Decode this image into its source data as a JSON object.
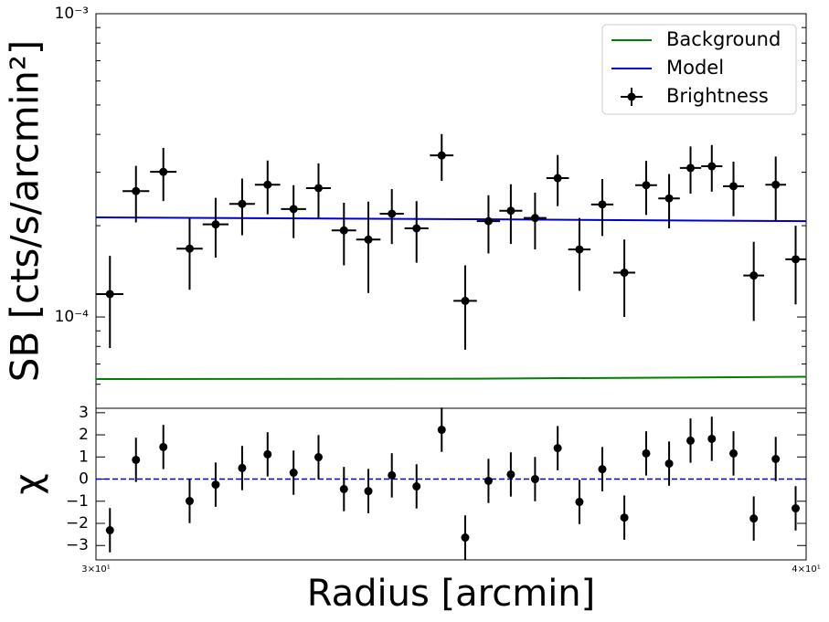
{
  "chart_data": [
    {
      "type": "scatter",
      "ylabel": "SB [cts/s/arcmin²]",
      "xscale": "log",
      "yscale": "log",
      "xlim": [
        30,
        40
      ],
      "ylim": [
        5e-05,
        0.001
      ],
      "yticks": [
        {
          "value": 0.001,
          "label": "10⁻³"
        },
        {
          "value": 0.0001,
          "label": "10⁻⁴"
        }
      ],
      "yminorticks": [
        6e-05,
        7e-05,
        8e-05,
        9e-05,
        0.0002,
        0.0003,
        0.0004,
        0.0005,
        0.0006,
        0.0007,
        0.0008,
        0.0009
      ],
      "legend": "upper right",
      "series": [
        {
          "name": "Background",
          "type": "line",
          "color": "#008000",
          "x": [
            30,
            35,
            40
          ],
          "values": [
            6.24e-05,
            6.26e-05,
            6.35e-05
          ]
        },
        {
          "name": "Model",
          "type": "line",
          "color": "#0000cd",
          "x": [
            30,
            35,
            40
          ],
          "values": [
            0.000213,
            0.00021,
            0.000207
          ]
        },
        {
          "name": "Brightness",
          "type": "errorbar",
          "color": "#000000",
          "x": [
            30.17,
            30.49,
            30.83,
            31.16,
            31.49,
            31.83,
            32.16,
            32.5,
            32.83,
            33.17,
            33.5,
            33.82,
            34.16,
            34.51,
            34.84,
            35.17,
            35.49,
            35.84,
            36.17,
            36.49,
            36.83,
            37.16,
            37.49,
            37.84,
            38.17,
            38.5,
            38.84,
            39.16,
            39.51,
            39.83
          ],
          "values": [
            0.000119,
            0.00026,
            0.000301,
            0.000168,
            0.000202,
            0.000236,
            0.000273,
            0.000227,
            0.000266,
            0.000193,
            0.00018,
            0.000219,
            0.000196,
            0.000341,
            0.000113,
            0.000207,
            0.000224,
            0.000212,
            0.000287,
            0.000167,
            0.000235,
            0.00014,
            0.000272,
            0.000246,
            0.00031,
            0.000314,
            0.00027,
            0.000137,
            0.000273,
            0.000155
          ],
          "yerr": [
            4e-05,
            5.5e-05,
            6e-05,
            4.5e-05,
            4.5e-05,
            5e-05,
            5.5e-05,
            4.5e-05,
            5.5e-05,
            4.5e-05,
            6e-05,
            4.5e-05,
            4.5e-05,
            6e-05,
            3.5e-05,
            4.5e-05,
            5e-05,
            4.5e-05,
            5.5e-05,
            4.5e-05,
            5e-05,
            4e-05,
            5.5e-05,
            5e-05,
            5.5e-05,
            5.5e-05,
            5.5e-05,
            4e-05,
            6.5e-05,
            4.5e-05
          ],
          "xerr": 0.165
        }
      ]
    },
    {
      "type": "scatter",
      "ylabel": "χ",
      "xlabel": "Radius [arcmin]",
      "xscale": "log",
      "xlim": [
        30,
        40
      ],
      "ylim": [
        -3.65,
        3.2
      ],
      "xticks": [
        {
          "value": 30,
          "label": "3×10¹"
        },
        {
          "value": 40,
          "label": "4×10¹"
        }
      ],
      "yticks": [
        {
          "value": -3,
          "label": "−3"
        },
        {
          "value": -2,
          "label": "−2"
        },
        {
          "value": -1,
          "label": "−1"
        },
        0,
        1,
        2,
        3
      ],
      "hline": 0,
      "hline_color": "#0000cd",
      "series": [
        {
          "type": "errorbar",
          "color": "#000000",
          "x": [
            30.17,
            30.49,
            30.83,
            31.16,
            31.49,
            31.83,
            32.16,
            32.5,
            32.83,
            33.17,
            33.5,
            33.82,
            34.16,
            34.51,
            34.84,
            35.17,
            35.49,
            35.84,
            36.17,
            36.49,
            36.83,
            37.16,
            37.49,
            37.84,
            38.17,
            38.5,
            38.84,
            39.16,
            39.51,
            39.83
          ],
          "values": [
            -2.31,
            0.87,
            1.45,
            -0.99,
            -0.25,
            0.5,
            1.12,
            0.29,
            0.99,
            -0.45,
            -0.54,
            0.17,
            -0.33,
            2.23,
            -2.64,
            -0.08,
            0.21,
            0,
            1.4,
            -1.03,
            0.45,
            -1.74,
            1.16,
            0.7,
            1.74,
            1.82,
            1.16,
            -1.78,
            0.91,
            -1.32
          ],
          "yerr": 1
        }
      ]
    }
  ]
}
